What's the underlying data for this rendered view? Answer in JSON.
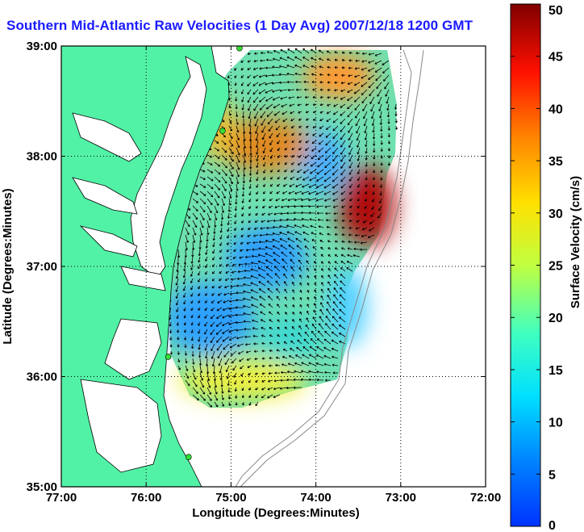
{
  "title": "Southern Mid-Atlantic Raw Velocities (1 Day Avg) 2007/12/18 1200 GMT",
  "map": {
    "xlabel": "Longitude (Degrees:Minutes)",
    "ylabel": "Latitude (Degrees:Minutes)",
    "lon_range": [
      -77,
      -72
    ],
    "lat_range": [
      35,
      39
    ],
    "lon_ticks": [
      {
        "value": -77,
        "label": "77:00"
      },
      {
        "value": -76,
        "label": "76:00"
      },
      {
        "value": -75,
        "label": "75:00"
      },
      {
        "value": -74,
        "label": "74:00"
      },
      {
        "value": -73,
        "label": "73:00"
      },
      {
        "value": -72,
        "label": "72:00"
      }
    ],
    "lat_ticks": [
      {
        "value": 35,
        "label": "35:00"
      },
      {
        "value": 36,
        "label": "36:00"
      },
      {
        "value": 37,
        "label": "37:00"
      },
      {
        "value": 38,
        "label": "38:00"
      },
      {
        "value": 39,
        "label": "39:00"
      }
    ],
    "grid": true,
    "land_color": "#52f2a6",
    "stations": [
      {
        "lon": -74.9,
        "lat": 38.98
      },
      {
        "lon": -75.1,
        "lat": 38.23
      },
      {
        "lon": -75.74,
        "lat": 36.18
      },
      {
        "lon": -75.5,
        "lat": 35.27
      }
    ]
  },
  "colorbar": {
    "label": "Surface Velocity (cm/s)",
    "min": 0,
    "max": 50,
    "ticks": [
      "0",
      "5",
      "10",
      "15",
      "20",
      "25",
      "30",
      "35",
      "40",
      "45",
      "50"
    ],
    "colormap": "jet"
  }
}
